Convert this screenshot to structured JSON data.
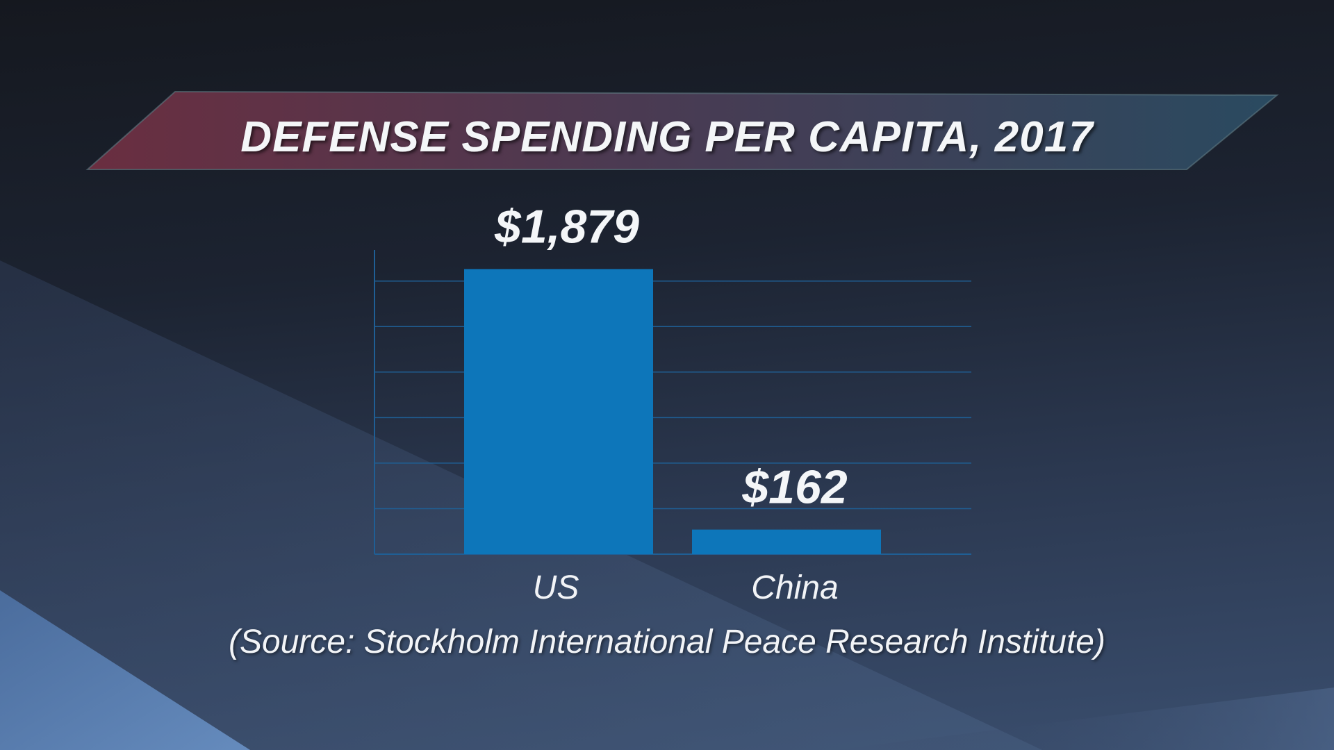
{
  "title": "DEFENSE SPENDING PER CAPITA, 2017",
  "source": "(Source: Stockholm International Peace Research Institute)",
  "colors": {
    "bar": "#0d76ba",
    "grid": "#1f5f95",
    "banner_left": "#6a2e40",
    "banner_right": "#2a4a60"
  },
  "chart_data": {
    "type": "bar",
    "title": "DEFENSE SPENDING PER CAPITA, 2017",
    "categories": [
      "US",
      "China"
    ],
    "values": [
      1879,
      162
    ],
    "data_labels": [
      "$1,879",
      "$162"
    ],
    "xlabel": "",
    "ylabel": "",
    "ylim": [
      0,
      2000
    ],
    "grid": true
  }
}
